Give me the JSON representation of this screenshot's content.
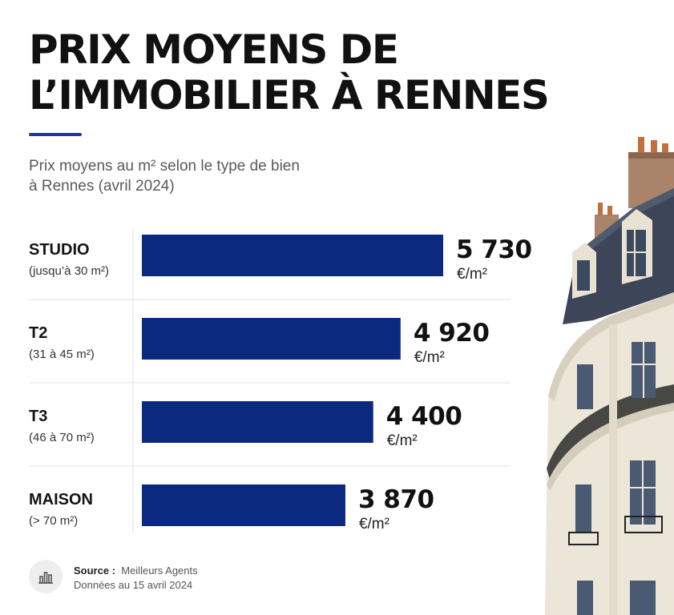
{
  "title": {
    "line1": "PRIX MOYENS DE",
    "line2": "L’IMMOBILIER À RENNES"
  },
  "subtitle": {
    "line1": "Prix moyens au m² selon le type de bien",
    "line2": "à Rennes (avril 2024)"
  },
  "colors": {
    "bar": "#0c2980",
    "accent": "#1f3a8a",
    "divider": "#e3e3e3"
  },
  "chart_data": {
    "type": "bar",
    "orientation": "horizontal",
    "categories": [
      "STUDIO",
      "T2",
      "T3",
      "MAISON"
    ],
    "category_details": [
      "(jusqu’à 30 m²)",
      "(31 à 45 m²)",
      "(46 à 70 m²)",
      "(> 70 m²)"
    ],
    "values": [
      5730,
      4920,
      4400,
      3870
    ],
    "value_labels": [
      "5 730",
      "4 920",
      "4 400",
      "3 870"
    ],
    "unit": "€/m²",
    "xlim": [
      0,
      5730
    ],
    "grid": false,
    "legend": "none"
  },
  "source": {
    "label": "Source :",
    "name": "Meilleurs Agents",
    "date": "Données au 15 avril 2024",
    "icon": "bar-chart-icon"
  },
  "illustration": {
    "icon": "haussmann-building-image"
  }
}
